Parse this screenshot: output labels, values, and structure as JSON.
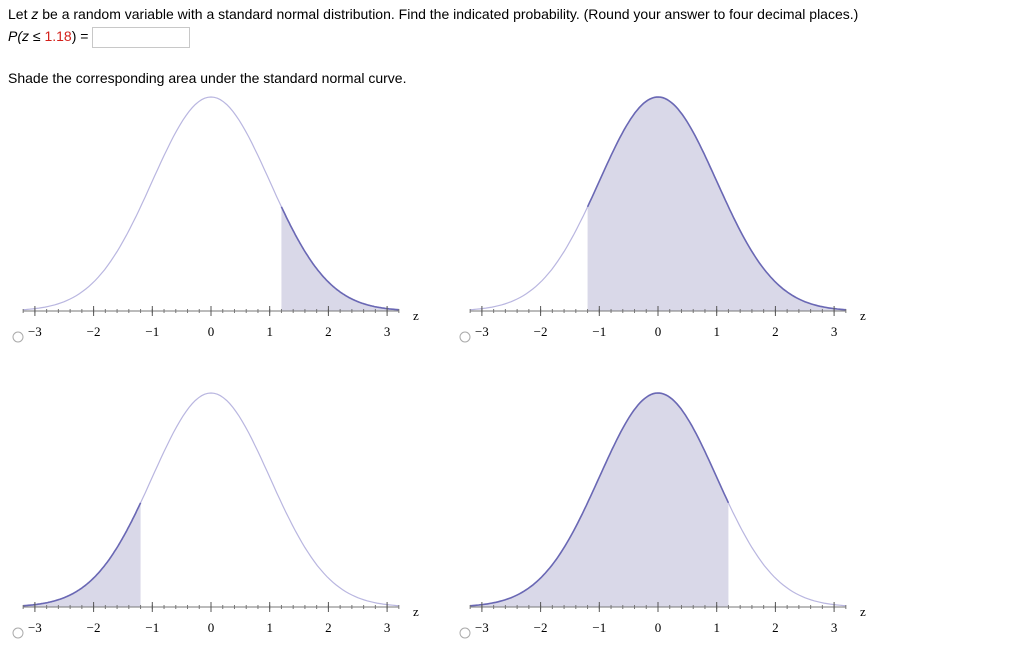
{
  "question": {
    "part1": "Let ",
    "variable": "z",
    "part2": " be a random variable with a standard normal distribution. Find the indicated probability. (Round your answer to four decimal places.)",
    "prompt_prefix": "P(z",
    "prompt_relation": " ≤ ",
    "prompt_value": "1.18",
    "prompt_suffix": ") =",
    "instruction": "Shade the corresponding area under the standard normal curve."
  },
  "axis": {
    "label": "z",
    "xlim": [
      -3.2,
      3.2
    ],
    "xticks": [
      {
        "value": -3,
        "label": "−3"
      },
      {
        "value": -2,
        "label": "−2"
      },
      {
        "value": -1,
        "label": "−1"
      },
      0,
      1,
      2,
      3
    ]
  },
  "options": [
    {
      "shade": [
        1.2,
        3.2
      ]
    },
    {
      "shade": [
        -1.2,
        3.2
      ]
    },
    {
      "shade": [
        -3.2,
        -1.2
      ]
    },
    {
      "shade": [
        -3.2,
        1.2
      ]
    }
  ]
}
